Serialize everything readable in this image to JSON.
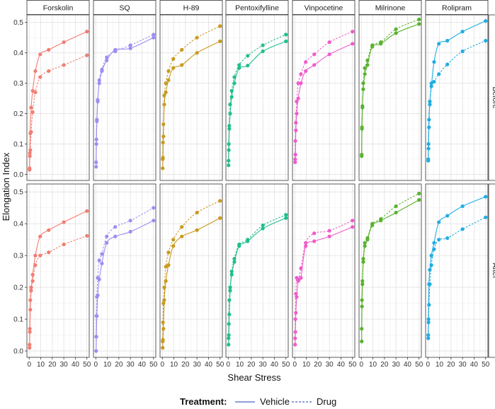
{
  "chart_data": {
    "type": "line",
    "layout": "facet_grid",
    "xlabel": "Shear Stress",
    "ylabel": "Elongation Index",
    "xlim": [
      -2,
      52
    ],
    "ylim": [
      -0.02,
      0.525
    ],
    "x_ticks": [
      0,
      10,
      20,
      30,
      40,
      50
    ],
    "y_ticks": [
      0.0,
      0.1,
      0.2,
      0.3,
      0.4,
      0.5
    ],
    "y_tick_labels": [
      "0.0",
      "0.1",
      "0.2",
      "0.3",
      "0.4",
      "0.5"
    ],
    "grid": true,
    "facet_columns": [
      "Forskolin",
      "SQ",
      "H-89",
      "Pentoxifylline",
      "Vinpocetine",
      "Milrinone",
      "Rolipram"
    ],
    "facet_rows": [
      "Before",
      "After"
    ],
    "colors": [
      "#F8766D",
      "#C49A00",
      "#53B400",
      "#00C094",
      "#00B6EB",
      "#A58AFF",
      "#FB61D7"
    ],
    "panel_colors": {
      "Forskolin": "#F27D72",
      "SQ": "#A08CF2",
      "H-89": "#C99A1E",
      "Pentoxifylline": "#20BE8E",
      "Vinpocetine": "#EF5CCB",
      "Milrinone": "#59B22E",
      "Rolipram": "#20ADE2"
    },
    "x": [
      0.3,
      0.53,
      0.95,
      1.69,
      3,
      5.33,
      9.49,
      16.87,
      30,
      50
    ],
    "legend": {
      "title": "Treatment:",
      "position": "bottom",
      "entries": [
        {
          "label": "Vehicle",
          "linetype": "solid"
        },
        {
          "label": "Drug",
          "linetype": "dashed"
        }
      ]
    },
    "panels": [
      {
        "drug": "Forskolin",
        "condition": "Before",
        "series": [
          {
            "name": "Vehicle",
            "values": [
              0.02,
              0.07,
              0.135,
              0.22,
              0.275,
              0.34,
              0.395,
              0.41,
              0.435,
              0.47
            ]
          },
          {
            "name": "Drug",
            "values": [
              0.015,
              0.06,
              0.08,
              0.14,
              0.205,
              0.27,
              0.32,
              0.34,
              0.36,
              0.392
            ]
          }
        ]
      },
      {
        "drug": "SQ",
        "condition": "Before",
        "series": [
          {
            "name": "Vehicle",
            "values": [
              0.025,
              0.1,
              0.175,
              0.245,
              0.3,
              0.34,
              0.375,
              0.41,
              0.415,
              0.45
            ]
          },
          {
            "name": "Drug",
            "values": [
              0.04,
              0.115,
              0.18,
              0.24,
              0.31,
              0.345,
              0.385,
              0.405,
              0.425,
              0.46
            ]
          }
        ]
      },
      {
        "drug": "H-89",
        "condition": "Before",
        "series": [
          {
            "name": "Vehicle",
            "values": [
              0.02,
              0.055,
              0.125,
              0.23,
              0.27,
              0.31,
              0.35,
              0.36,
              0.4,
              0.438
            ]
          },
          {
            "name": "Drug",
            "values": [
              0.05,
              0.105,
              0.165,
              0.26,
              0.3,
              0.34,
              0.38,
              0.41,
              0.45,
              0.488
            ]
          }
        ]
      },
      {
        "drug": "Pentoxifylline",
        "condition": "Before",
        "series": [
          {
            "name": "Vehicle",
            "values": [
              0.03,
              0.08,
              0.15,
              0.2,
              0.255,
              0.3,
              0.35,
              0.358,
              0.405,
              0.438
            ]
          },
          {
            "name": "Drug",
            "values": [
              0.045,
              0.1,
              0.16,
              0.23,
              0.275,
              0.32,
              0.36,
              0.39,
              0.425,
              0.46
            ]
          }
        ]
      },
      {
        "drug": "Vinpocetine",
        "condition": "Before",
        "series": [
          {
            "name": "Vehicle",
            "values": [
              0.04,
              0.065,
              0.145,
              0.2,
              0.25,
              0.3,
              0.34,
              0.36,
              0.395,
              0.43
            ]
          },
          {
            "name": "Drug",
            "values": [
              0.05,
              0.11,
              0.17,
              0.24,
              0.3,
              0.33,
              0.37,
              0.395,
              0.435,
              0.47
            ]
          }
        ]
      },
      {
        "drug": "Milrinone",
        "condition": "Before",
        "series": [
          {
            "name": "Vehicle",
            "values": [
              0.06,
              0.15,
              0.22,
              0.28,
              0.33,
              0.36,
              0.42,
              0.43,
              0.465,
              0.495
            ]
          },
          {
            "name": "Drug",
            "values": [
              0.065,
              0.155,
              0.225,
              0.3,
              0.35,
              0.375,
              0.425,
              0.435,
              0.478,
              0.51
            ]
          }
        ]
      },
      {
        "drug": "Rolipram",
        "condition": "Before",
        "series": [
          {
            "name": "Vehicle",
            "values": [
              0.045,
              0.1,
              0.18,
              0.24,
              0.29,
              0.37,
              0.43,
              0.44,
              0.47,
              0.505
            ]
          },
          {
            "name": "Drug",
            "values": [
              0.05,
              0.085,
              0.155,
              0.23,
              0.3,
              0.305,
              0.33,
              0.362,
              0.405,
              0.44
            ]
          }
        ]
      },
      {
        "drug": "Forskolin",
        "condition": "After",
        "series": [
          {
            "name": "Vehicle",
            "values": [
              0.01,
              0.06,
              0.13,
              0.19,
              0.24,
              0.3,
              0.36,
              0.38,
              0.405,
              0.44
            ]
          },
          {
            "name": "Drug",
            "values": [
              0.02,
              0.07,
              0.16,
              0.2,
              0.22,
              0.27,
              0.3,
              0.31,
              0.335,
              0.362
            ]
          }
        ]
      },
      {
        "drug": "SQ",
        "condition": "After",
        "series": [
          {
            "name": "Vehicle",
            "values": [
              0.0,
              0.045,
              0.11,
              0.175,
              0.225,
              0.275,
              0.34,
              0.36,
              0.375,
              0.41
            ]
          },
          {
            "name": "Drug",
            "values": [
              0.045,
              0.11,
              0.17,
              0.23,
              0.285,
              0.305,
              0.36,
              0.39,
              0.41,
              0.45
            ]
          }
        ]
      },
      {
        "drug": "H-89",
        "condition": "After",
        "series": [
          {
            "name": "Vehicle",
            "values": [
              0.01,
              0.035,
              0.07,
              0.16,
              0.22,
              0.27,
              0.33,
              0.36,
              0.38,
              0.418
            ]
          },
          {
            "name": "Drug",
            "values": [
              0.03,
              0.09,
              0.15,
              0.2,
              0.265,
              0.31,
              0.35,
              0.39,
              0.435,
              0.472
            ]
          }
        ]
      },
      {
        "drug": "Pentoxifylline",
        "condition": "After",
        "series": [
          {
            "name": "Vehicle",
            "values": [
              0.02,
              0.05,
              0.115,
              0.19,
              0.24,
              0.28,
              0.33,
              0.345,
              0.385,
              0.418
            ]
          },
          {
            "name": "Drug",
            "values": [
              0.04,
              0.085,
              0.16,
              0.2,
              0.25,
              0.29,
              0.335,
              0.35,
              0.395,
              0.428
            ]
          }
        ]
      },
      {
        "drug": "Vinpocetine",
        "condition": "After",
        "series": [
          {
            "name": "Vehicle",
            "values": [
              0.02,
              0.06,
              0.12,
              0.17,
              0.22,
              0.23,
              0.33,
              0.345,
              0.36,
              0.39
            ]
          },
          {
            "name": "Drug",
            "values": [
              0.04,
              0.1,
              0.18,
              0.23,
              0.225,
              0.26,
              0.34,
              0.37,
              0.378,
              0.41
            ]
          }
        ]
      },
      {
        "drug": "Milrinone",
        "condition": "After",
        "series": [
          {
            "name": "Vehicle",
            "values": [
              0.03,
              0.14,
              0.21,
              0.28,
              0.33,
              0.35,
              0.395,
              0.41,
              0.435,
              0.475
            ]
          },
          {
            "name": "Drug",
            "values": [
              0.07,
              0.16,
              0.22,
              0.29,
              0.34,
              0.355,
              0.4,
              0.415,
              0.455,
              0.495
            ]
          }
        ]
      },
      {
        "drug": "Rolipram",
        "condition": "After",
        "series": [
          {
            "name": "Vehicle",
            "values": [
              0.04,
              0.1,
              0.21,
              0.255,
              0.3,
              0.34,
              0.405,
              0.425,
              0.455,
              0.485
            ]
          },
          {
            "name": "Drug",
            "values": [
              0.05,
              0.09,
              0.145,
              0.21,
              0.27,
              0.32,
              0.35,
              0.355,
              0.383,
              0.42
            ]
          }
        ]
      }
    ]
  }
}
